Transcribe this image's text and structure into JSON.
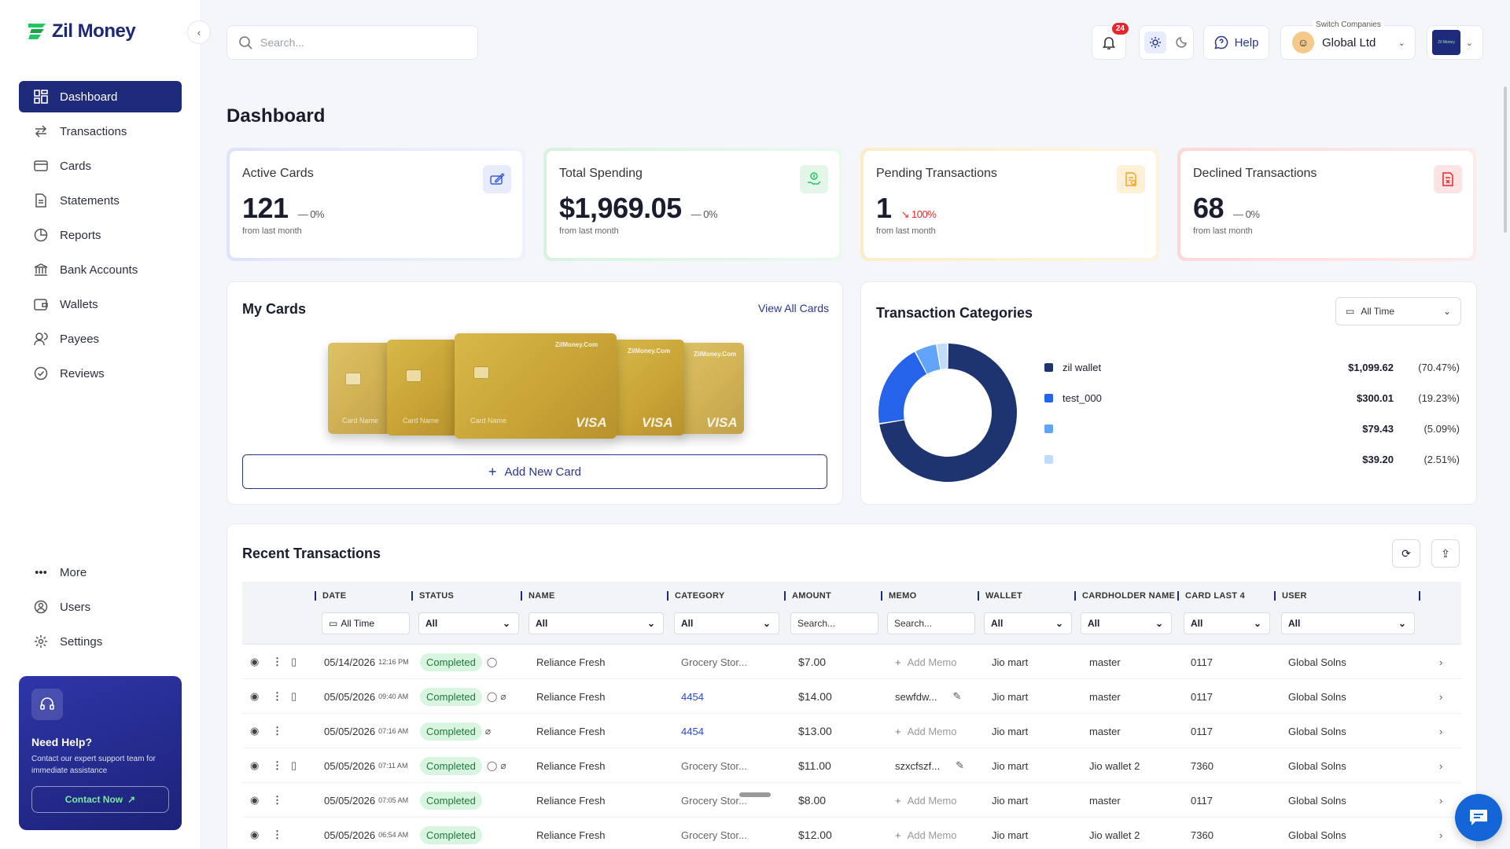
{
  "brand": {
    "name": "Zil Money",
    "accent": "#1e2a7a",
    "green": "#22c55e"
  },
  "sidebar": {
    "items": [
      {
        "label": "Dashboard",
        "icon": "grid-icon",
        "active": true
      },
      {
        "label": "Transactions",
        "icon": "arrows-icon"
      },
      {
        "label": "Cards",
        "icon": "card-icon"
      },
      {
        "label": "Statements",
        "icon": "document-icon"
      },
      {
        "label": "Reports",
        "icon": "pie-icon"
      },
      {
        "label": "Bank Accounts",
        "icon": "bank-icon"
      },
      {
        "label": "Wallets",
        "icon": "wallet-icon"
      },
      {
        "label": "Payees",
        "icon": "users-icon"
      },
      {
        "label": "Reviews",
        "icon": "check-circle-icon"
      }
    ],
    "bottom": [
      {
        "label": "More",
        "icon": "dots-icon"
      },
      {
        "label": "Users",
        "icon": "user-circle-icon"
      },
      {
        "label": "Settings",
        "icon": "gear-icon"
      }
    ],
    "help": {
      "title": "Need Help?",
      "desc": "Contact our expert support team for immediate assistance",
      "button": "Contact Now"
    }
  },
  "topbar": {
    "search_placeholder": "Search...",
    "notifications": "24",
    "help_label": "Help",
    "switch_label": "Switch Companies",
    "company": "Global Ltd"
  },
  "page_title": "Dashboard",
  "stats": [
    {
      "label": "Active Cards",
      "value": "121",
      "delta": "— 0%",
      "sub": "from last month",
      "color": "#3b5bdb"
    },
    {
      "label": "Total Spending",
      "value": "$1,969.05",
      "delta": "— 0%",
      "sub": "from last month",
      "color": "#22c55e"
    },
    {
      "label": "Pending Transactions",
      "value": "1",
      "delta": "100%",
      "sub": "from last month",
      "color": "#f5a524"
    },
    {
      "label": "Declined Transactions",
      "value": "68",
      "delta": "— 0%",
      "sub": "from last month",
      "color": "#e8262a"
    }
  ],
  "my_cards": {
    "title": "My Cards",
    "view_all": "View All Cards",
    "add_label": "Add New Card",
    "card_brand": "VISA",
    "card_name": "Card Name",
    "card_issuer": "ZilMoney.Com"
  },
  "categories": {
    "title": "Transaction Categories",
    "filter": "All Time",
    "items": [
      {
        "name": "zil wallet",
        "amount": "$1,099.62",
        "pct": "(70.47%)",
        "share": 70.47,
        "color": "#1e3470"
      },
      {
        "name": "test_000",
        "amount": "$300.01",
        "pct": "(19.23%)",
        "share": 19.23,
        "color": "#2563eb"
      },
      {
        "name": "",
        "amount": "$79.43",
        "pct": "(5.09%)",
        "share": 5.09,
        "color": "#60a5fa"
      },
      {
        "name": "",
        "amount": "$39.20",
        "pct": "(2.51%)",
        "share": 2.51,
        "color": "#bfdbfe"
      }
    ]
  },
  "recent": {
    "title": "Recent Transactions",
    "columns": [
      "DATE",
      "STATUS",
      "NAME",
      "CATEGORY",
      "AMOUNT",
      "MEMO",
      "WALLET",
      "CARDHOLDER NAME",
      "CARD LAST 4",
      "USER"
    ],
    "filters": {
      "date": "All Time",
      "status": "All",
      "name": "All",
      "category": "All",
      "amount": "Search...",
      "memo": "Search...",
      "wallet": "All",
      "cardholder": "All",
      "card_last4": "All",
      "user": "All"
    },
    "rows": [
      {
        "date": "05/14/2026",
        "time": "12:16 PM",
        "status": "Completed",
        "name": "Reliance Fresh",
        "category": "Grocery Stor...",
        "amount": "$7.00",
        "memo": "Add Memo",
        "wallet": "Jio mart",
        "cardholder": "master",
        "last4": "0117",
        "user": "Global Solns"
      },
      {
        "date": "05/05/2026",
        "time": "09:40 AM",
        "status": "Completed",
        "name": "Reliance Fresh",
        "category": "4454",
        "amount": "$14.00",
        "memo": "sewfdw...",
        "wallet": "Jio mart",
        "cardholder": "master",
        "last4": "0117",
        "user": "Global Solns"
      },
      {
        "date": "05/05/2026",
        "time": "07:16 AM",
        "status": "Completed",
        "name": "Reliance Fresh",
        "category": "4454",
        "amount": "$13.00",
        "memo": "Add Memo",
        "wallet": "Jio mart",
        "cardholder": "master",
        "last4": "0117",
        "user": "Global Solns"
      },
      {
        "date": "05/05/2026",
        "time": "07:11 AM",
        "status": "Completed",
        "name": "Reliance Fresh",
        "category": "Grocery Stor...",
        "amount": "$11.00",
        "memo": "szxcfszf...",
        "wallet": "Jio mart",
        "cardholder": "Jio wallet 2",
        "last4": "7360",
        "user": "Global Solns"
      },
      {
        "date": "05/05/2026",
        "time": "07:05 AM",
        "status": "Completed",
        "name": "Reliance Fresh",
        "category": "Grocery Stor...",
        "amount": "$8.00",
        "memo": "Add Memo",
        "wallet": "Jio mart",
        "cardholder": "master",
        "last4": "0117",
        "user": "Global Solns"
      },
      {
        "date": "05/05/2026",
        "time": "06:54 AM",
        "status": "Completed",
        "name": "Reliance Fresh",
        "category": "Grocery Stor...",
        "amount": "$12.00",
        "memo": "Add Memo",
        "wallet": "Jio mart",
        "cardholder": "Jio wallet 2",
        "last4": "7360",
        "user": "Global Solns"
      }
    ]
  }
}
